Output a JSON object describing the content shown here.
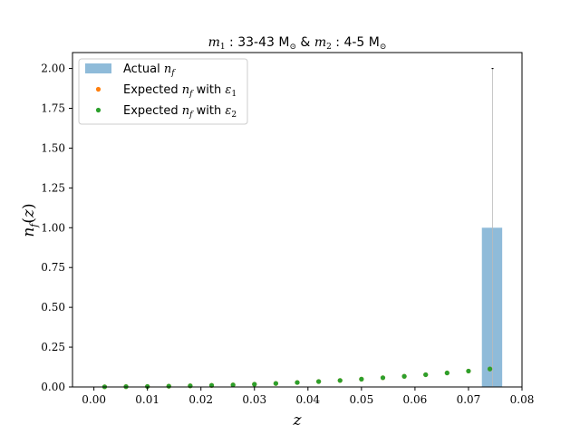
{
  "chart_data": {
    "type": "bar",
    "title": "m1 : 33-43 M⊙ & m2 : 4-5 M⊙",
    "xlabel": "z",
    "ylabel": "n_f(z)",
    "xlim": [
      -0.004,
      0.08
    ],
    "ylim": [
      0,
      2.1
    ],
    "x_ticks": [
      "0.00",
      "0.01",
      "0.02",
      "0.03",
      "0.04",
      "0.05",
      "0.06",
      "0.07",
      "0.08"
    ],
    "y_ticks": [
      "0.00",
      "0.25",
      "0.50",
      "0.75",
      "1.00",
      "1.25",
      "1.50",
      "1.75",
      "2.00"
    ],
    "grid": false,
    "legend_position": "top-left",
    "bars": [
      {
        "x_left": 0.0725,
        "x_right": 0.0763,
        "value": 1.0,
        "error_low": 0.0,
        "error_high": 2.0,
        "center": 0.0745
      }
    ],
    "series": [
      {
        "name": "Expected n_f with ε1",
        "color": "#ff7f0e",
        "x": [
          0.002,
          0.006,
          0.01,
          0.014,
          0.018,
          0.022,
          0.026,
          0.03,
          0.034,
          0.038,
          0.042,
          0.046,
          0.05,
          0.054,
          0.058,
          0.062,
          0.066,
          0.07,
          0.074
        ],
        "y": [
          0.001,
          0.002,
          0.003,
          0.005,
          0.007,
          0.01,
          0.013,
          0.017,
          0.022,
          0.028,
          0.034,
          0.041,
          0.049,
          0.058,
          0.067,
          0.077,
          0.088,
          0.1,
          0.113
        ]
      },
      {
        "name": "Expected n_f with ε2",
        "color": "#2ca02c",
        "x": [
          0.002,
          0.006,
          0.01,
          0.014,
          0.018,
          0.022,
          0.026,
          0.03,
          0.034,
          0.038,
          0.042,
          0.046,
          0.05,
          0.054,
          0.058,
          0.062,
          0.066,
          0.07,
          0.074
        ],
        "y": [
          0.001,
          0.002,
          0.003,
          0.005,
          0.007,
          0.01,
          0.013,
          0.017,
          0.022,
          0.028,
          0.034,
          0.041,
          0.049,
          0.058,
          0.067,
          0.077,
          0.088,
          0.1,
          0.113
        ]
      }
    ],
    "legend": {
      "actual_label": "Actual n_f",
      "actual_color": "#1f77b4",
      "exp1_label": "Expected n_f with ε1",
      "exp2_label": "Expected n_f with ε2"
    }
  }
}
